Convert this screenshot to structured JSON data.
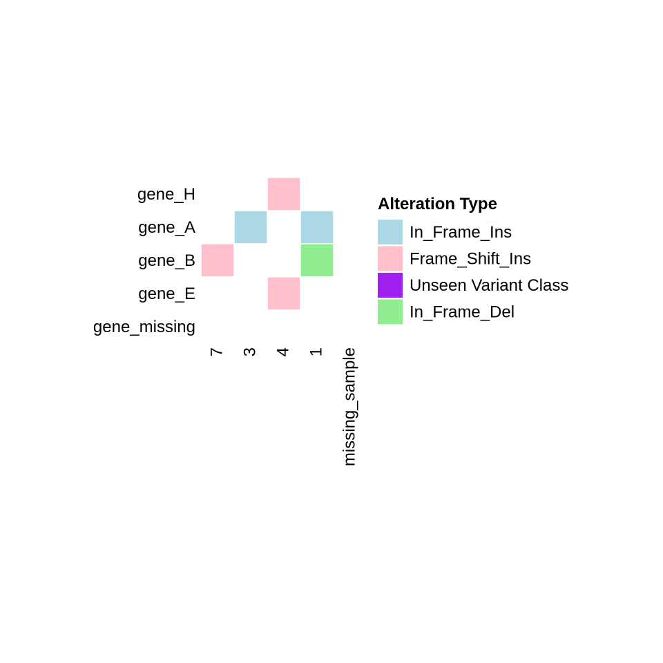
{
  "chart_data": {
    "type": "heatmap",
    "title": "",
    "xlabel": "",
    "ylabel": "",
    "rows": [
      "gene_H",
      "gene_A",
      "gene_B",
      "gene_E",
      "gene_missing"
    ],
    "columns": [
      "7",
      "3",
      "4",
      "1",
      "missing_sample"
    ],
    "cells": [
      {
        "row": "gene_H",
        "column": "4",
        "alteration": "Frame_Shift_Ins"
      },
      {
        "row": "gene_A",
        "column": "3",
        "alteration": "In_Frame_Ins"
      },
      {
        "row": "gene_A",
        "column": "1",
        "alteration": "In_Frame_Ins"
      },
      {
        "row": "gene_B",
        "column": "7",
        "alteration": "Frame_Shift_Ins"
      },
      {
        "row": "gene_B",
        "column": "1",
        "alteration": "In_Frame_Del"
      },
      {
        "row": "gene_E",
        "column": "4",
        "alteration": "Frame_Shift_Ins"
      }
    ],
    "legend": {
      "title": "Alteration Type",
      "position": "right",
      "entries": [
        {
          "label": "In_Frame_Ins",
          "color": "#add8e6"
        },
        {
          "label": "Frame_Shift_Ins",
          "color": "#ffc0cb"
        },
        {
          "label": "Unseen Variant Class",
          "color": "#a020f0"
        },
        {
          "label": "In_Frame_Del",
          "color": "#90ee90"
        }
      ]
    }
  }
}
